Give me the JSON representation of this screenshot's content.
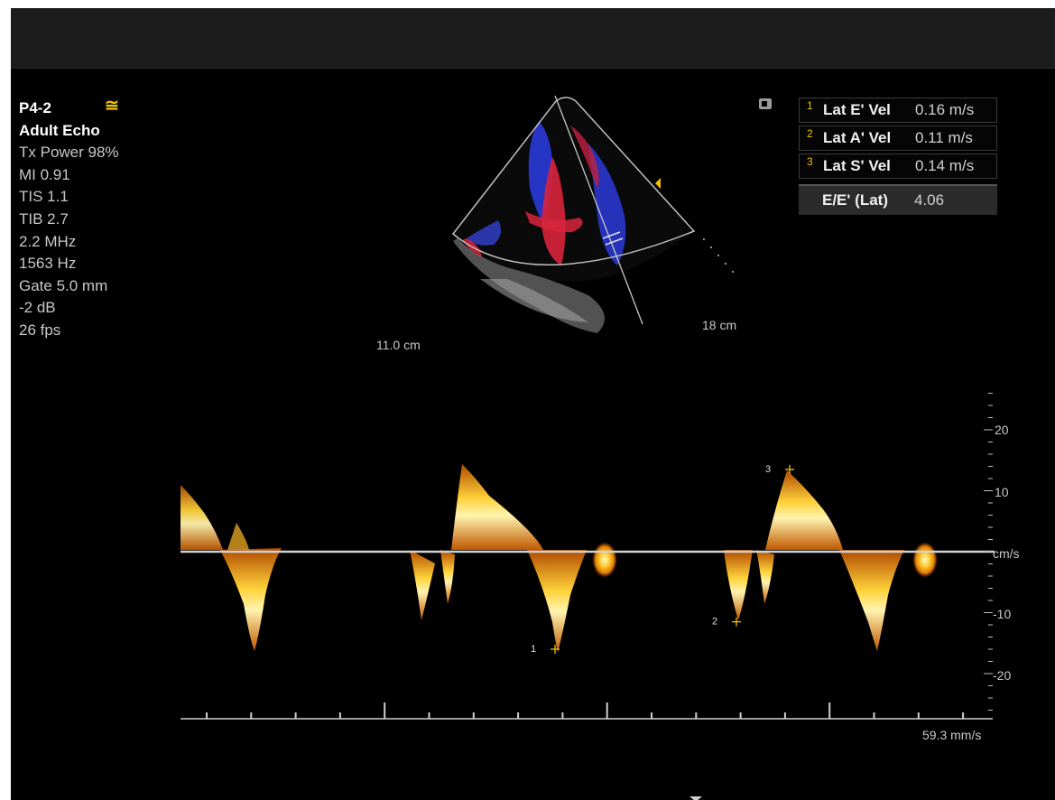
{
  "probe": {
    "name": "P4-2",
    "preset": "Adult Echo",
    "params": [
      "Tx Power 98%",
      "MI 0.91",
      "TIS 1.1",
      "TIB 2.7",
      "2.2 MHz",
      "1563 Hz",
      "Gate 5.0 mm",
      "-2 dB",
      "26 fps"
    ]
  },
  "image": {
    "width_label": "11.0 cm",
    "depth_label": "18 cm"
  },
  "measurements": [
    {
      "num": "1",
      "label": "Lat E' Vel",
      "value": "0.16 m/s"
    },
    {
      "num": "2",
      "label": "Lat A' Vel",
      "value": "0.11 m/s"
    },
    {
      "num": "3",
      "label": "Lat S' Vel",
      "value": "0.14 m/s"
    }
  ],
  "ratio": {
    "label": "E/E' (Lat)",
    "value": "4.06"
  },
  "doppler": {
    "scale_labels": [
      "20",
      "10",
      "cm/s",
      "-10",
      "-20"
    ],
    "sweep_label": "59.3 mm/s",
    "markers": [
      {
        "num": "1",
        "velocity_cm_s": -16
      },
      {
        "num": "2",
        "velocity_cm_s": -11.5
      },
      {
        "num": "3",
        "velocity_cm_s": 13.5
      }
    ]
  },
  "colors": {
    "marker": "#f2c200",
    "flow_red": "#d8243c",
    "flow_blue": "#2a3ad8"
  }
}
